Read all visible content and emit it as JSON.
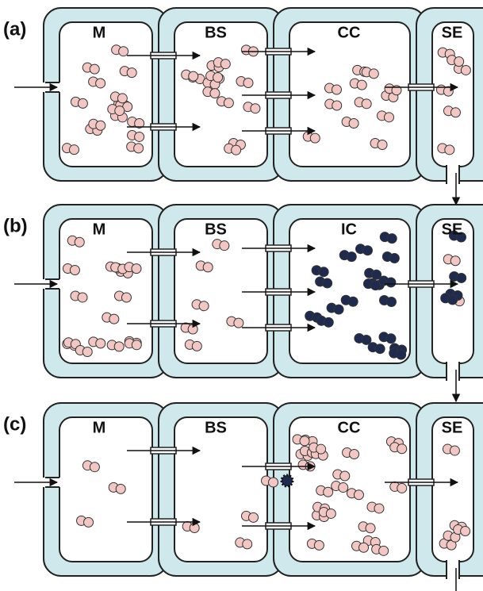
{
  "panels": [
    {
      "label": "(a)",
      "cells": [
        "M",
        "BS",
        "CC",
        "SE"
      ]
    },
    {
      "label": "(b)",
      "cells": [
        "M",
        "BS",
        "IC",
        "SE"
      ]
    },
    {
      "label": "(c)",
      "cells": [
        "M",
        "BS",
        "CC",
        "SE"
      ]
    }
  ]
}
